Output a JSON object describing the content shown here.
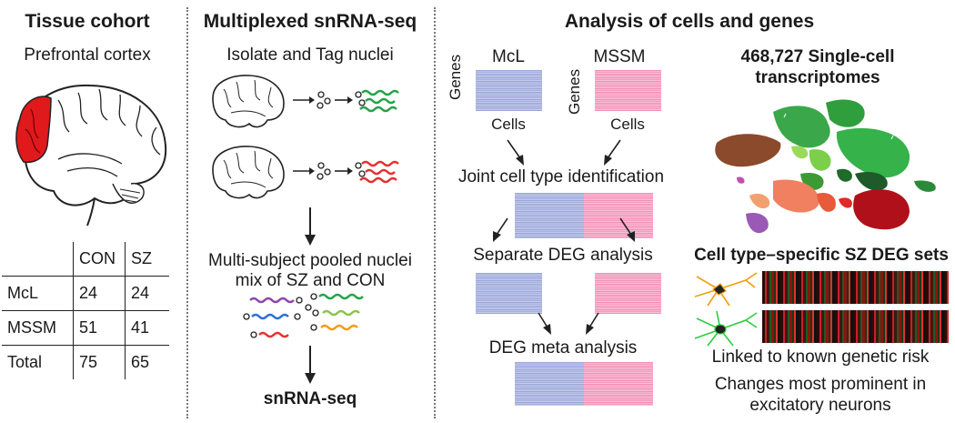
{
  "tissue": {
    "title": "Tissue cohort",
    "subtitle": "Prefrontal cortex",
    "table": {
      "columns": [
        "",
        "CON",
        "SZ"
      ],
      "rows": [
        {
          "label": "McL",
          "con": "24",
          "sz": "24"
        },
        {
          "label": "MSSM",
          "con": "51",
          "sz": "41"
        },
        {
          "label": "Total",
          "con": "75",
          "sz": "65"
        }
      ]
    }
  },
  "multiplex": {
    "title": "Multiplexed snRNA-seq",
    "step1": "Isolate and Tag nuclei",
    "step2_line1": "Multi-subject pooled nuclei",
    "step2_line2": "mix of SZ and CON",
    "step3": "snRNA-seq"
  },
  "analysis": {
    "title": "Analysis of cells and genes",
    "cohort1": "McL",
    "cohort2": "MSSM",
    "axis_genes": "Genes",
    "axis_cells": "Cells",
    "joint": "Joint cell type identification",
    "separate": "Separate DEG analysis",
    "meta": "DEG meta analysis",
    "count_line1": "468,727 Single-cell",
    "count_line2": "transcriptomes",
    "deg_sets": "Cell type–specific SZ DEG sets",
    "finding1": "Linked to known genetic risk",
    "finding2_line1": "Changes most prominent in",
    "finding2_line2": "excitatory neurons"
  },
  "colors": {
    "pfc_red": "#e0191c",
    "con_blue": "#a7b1dd",
    "sz_pink": "#f49cbc",
    "tag_green": "#22a447",
    "tag_red": "#e53030",
    "neuron_orange": "#f39c12",
    "neuron_green": "#2ecc40"
  }
}
